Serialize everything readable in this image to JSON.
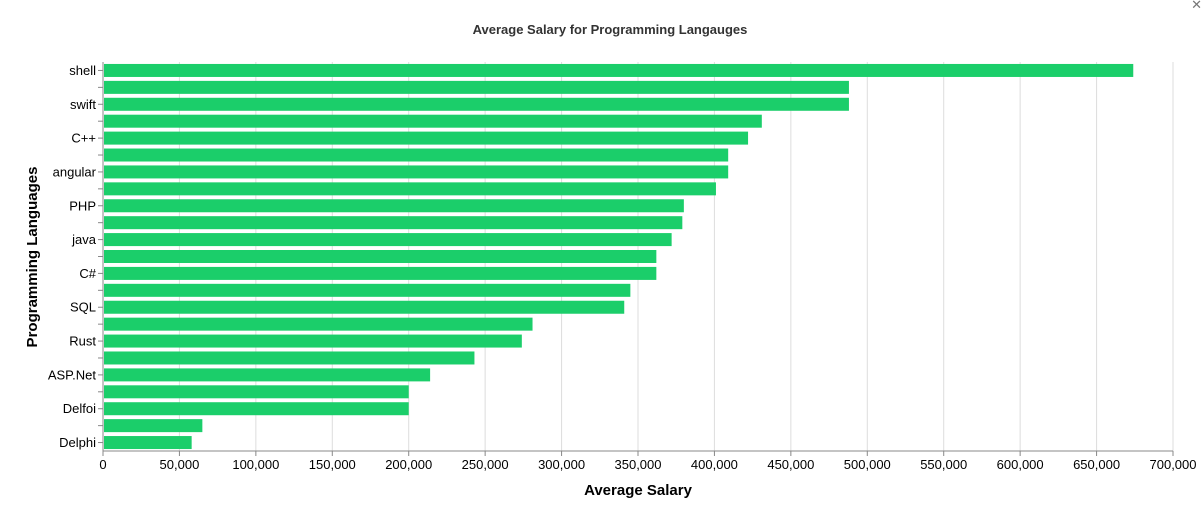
{
  "close_icon": "close-icon",
  "close_glyph": "✕",
  "chart_data": {
    "type": "bar",
    "orientation": "horizontal",
    "title": "Average Salary for Programming Langauges",
    "xlabel": "Average Salary",
    "ylabel": "Programming Languages",
    "xlim": [
      0,
      700000
    ],
    "xticks": [
      0,
      50000,
      100000,
      150000,
      200000,
      250000,
      300000,
      350000,
      400000,
      450000,
      500000,
      550000,
      600000,
      650000,
      700000
    ],
    "xtick_labels": [
      "0",
      "50,000",
      "100,000",
      "150,000",
      "200,000",
      "250,000",
      "300,000",
      "350,000",
      "400,000",
      "450,000",
      "500,000",
      "550,000",
      "600,000",
      "650,000",
      "700,000"
    ],
    "grid": true,
    "bar_color": "#1bce6a",
    "categories": [
      "shell",
      "",
      "swift",
      "",
      "C++",
      "",
      "angular",
      "",
      "PHP",
      "",
      "java",
      "",
      "C#",
      "",
      "SQL",
      "",
      "Rust",
      "",
      "ASP.Net",
      "",
      "Delfoi",
      "",
      "Delphi"
    ],
    "values": [
      674000,
      488000,
      488000,
      431000,
      422000,
      409000,
      409000,
      401000,
      380000,
      379000,
      372000,
      362000,
      362000,
      345000,
      341000,
      281000,
      274000,
      243000,
      214000,
      200000,
      200000,
      65000,
      58000
    ]
  }
}
